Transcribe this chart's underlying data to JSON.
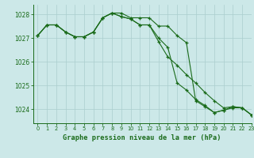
{
  "title": "Graphe pression niveau de la mer (hPa)",
  "background_color": "#cce8e8",
  "grid_color": "#aacece",
  "line_color": "#1a6b1a",
  "xlim": [
    -0.5,
    23
  ],
  "ylim": [
    1023.4,
    1028.4
  ],
  "yticks": [
    1024,
    1025,
    1026,
    1027,
    1028
  ],
  "xticks": [
    0,
    1,
    2,
    3,
    4,
    5,
    6,
    7,
    8,
    9,
    10,
    11,
    12,
    13,
    14,
    15,
    16,
    17,
    18,
    19,
    20,
    21,
    22,
    23
  ],
  "hours": [
    0,
    1,
    2,
    3,
    4,
    5,
    6,
    7,
    8,
    9,
    10,
    11,
    12,
    13,
    14,
    15,
    16,
    17,
    18,
    19,
    20,
    21,
    22,
    23
  ],
  "line1": [
    1027.1,
    1027.55,
    1027.55,
    1027.25,
    1027.05,
    1027.05,
    1027.25,
    1027.85,
    1028.05,
    1028.05,
    1027.85,
    1027.85,
    1027.85,
    1027.5,
    1027.5,
    1027.1,
    1026.8,
    1024.35,
    1024.1,
    1023.85,
    1023.95,
    1024.05,
    1024.05,
    1023.75
  ],
  "line2": [
    1027.1,
    1027.55,
    1027.55,
    1027.25,
    1027.05,
    1027.05,
    1027.25,
    1027.85,
    1028.05,
    1027.9,
    1027.8,
    1027.55,
    1027.55,
    1026.85,
    1026.2,
    1025.85,
    1025.45,
    1025.1,
    1024.7,
    1024.35,
    1024.05,
    1024.1,
    1024.05,
    1023.75
  ],
  "line3": [
    1027.1,
    1027.55,
    1027.55,
    1027.25,
    1027.05,
    1027.05,
    1027.25,
    1027.85,
    1028.05,
    1027.9,
    1027.8,
    1027.55,
    1027.55,
    1027.0,
    1026.6,
    1025.1,
    1024.8,
    1024.4,
    1024.15,
    1023.85,
    1023.95,
    1024.1,
    1024.05,
    1023.75
  ]
}
